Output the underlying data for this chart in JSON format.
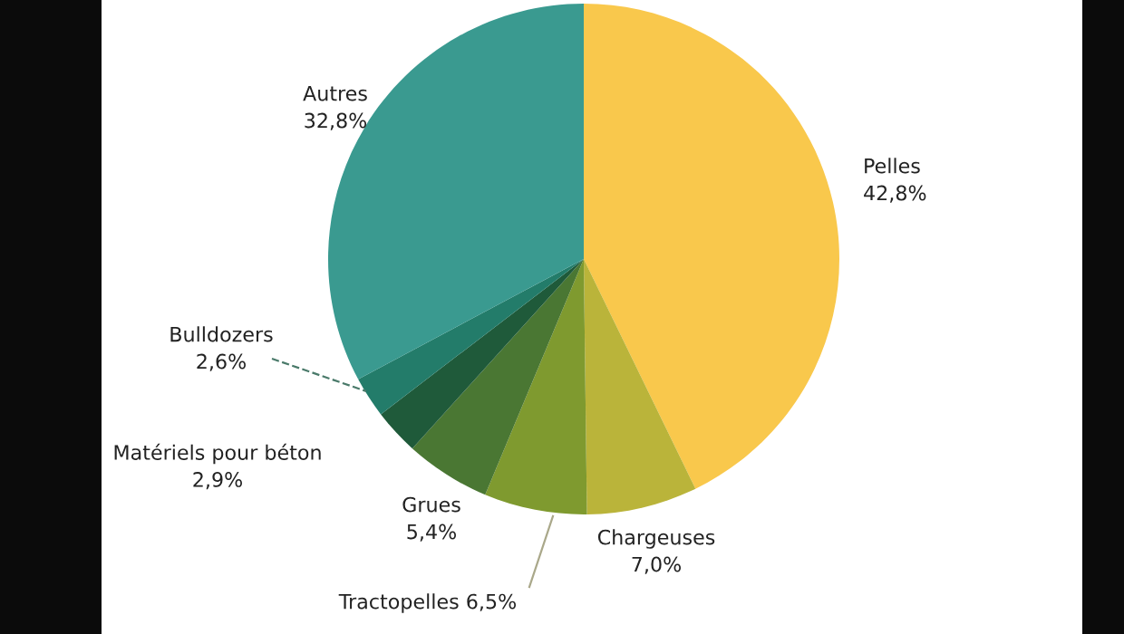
{
  "chart_data": {
    "type": "pie",
    "categories": [
      "Pelles",
      "Chargeuses",
      "Tractopelles",
      "Grues",
      "Matériels pour béton",
      "Bulldozers",
      "Autres"
    ],
    "values": [
      42.8,
      7.0,
      6.5,
      5.4,
      2.9,
      2.6,
      32.8
    ],
    "value_labels": [
      "42,8%",
      "7,0%",
      "6,5%",
      "5,4%",
      "2,9%",
      "2,6%",
      "32,8%"
    ],
    "colors": [
      "#f9c84c",
      "#bab43a",
      "#7f9a2f",
      "#4a7733",
      "#1f5a3a",
      "#237c6a",
      "#3a9a90"
    ]
  }
}
